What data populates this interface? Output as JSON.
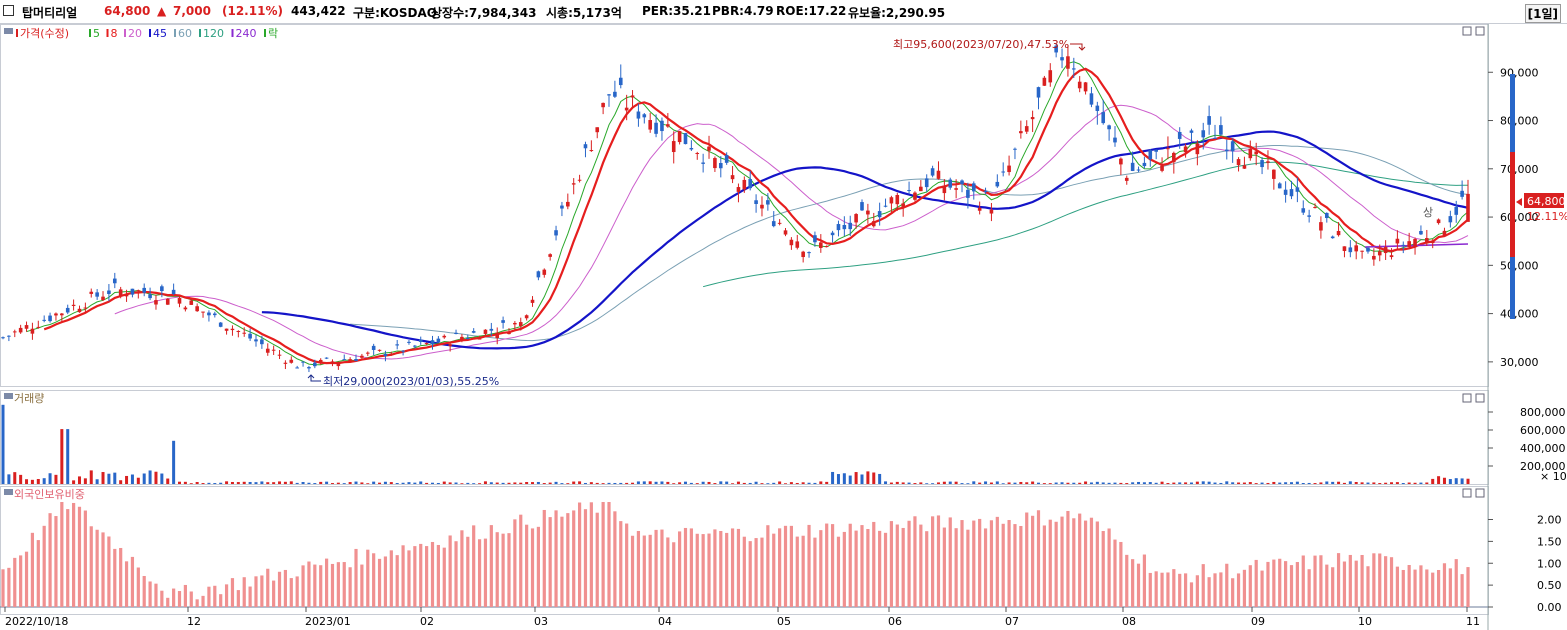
{
  "header": {
    "name": "탑머티리얼",
    "price": "64,800",
    "change_arrow": "▲",
    "change": "7,000",
    "change_pct": "(12.11%)",
    "volume": "443,422",
    "market": "구분:KOSDAQ",
    "shares": "상장수:7,984,343",
    "mktcap": "시총:5,173억",
    "per": "PER:35.21",
    "pbr": "PBR:4.79",
    "roe": "ROE:17.22",
    "float": "유보율:2,290.95",
    "period": "[1일]"
  },
  "colors": {
    "up": "#d92020",
    "down": "#2866c8",
    "ma5": "#2aa82a",
    "ma8": "#e61e1e",
    "ma20": "#cc5fcc",
    "ma45": "#1414c8",
    "ma60": "#7aa0b4",
    "ma120": "#2ea082",
    "ma240": "#8a2ad0",
    "foreign": "#f09090"
  },
  "price_panel": {
    "legend": [
      "가격(수정)",
      "5",
      "8",
      "20",
      "45",
      "60",
      "120",
      "240",
      "락"
    ],
    "axis_ticks": [
      "90,000",
      "80,000",
      "70,000",
      "60,000",
      "50,000",
      "40,000",
      "30,000"
    ],
    "high_label": "최고95,600(2023/07/20),47.53%",
    "low_label": "최저29,000(2023/01/03),55.25%",
    "current_price_label": "64,800",
    "current_pct_label": "12.11%",
    "marker_label": "상"
  },
  "volume_panel": {
    "title": "거래량",
    "axis_ticks": [
      "800,000",
      "600,000",
      "400,000",
      "200,000"
    ],
    "unit": "× 10"
  },
  "foreign_panel": {
    "title": "외국인보유비중",
    "axis_ticks": [
      "2.00",
      "1.50",
      "1.00",
      "0.50",
      "0.00"
    ]
  },
  "x_axis": [
    "2022/10/18",
    "12",
    "2023/01",
    "02",
    "03",
    "04",
    "05",
    "06",
    "07",
    "08",
    "09",
    "10",
    "11"
  ],
  "chart_data": {
    "type": "candlestick",
    "title": "",
    "x_start": "2022-10-18",
    "x_end": "2023-11-01",
    "price_key_points": [
      {
        "date": "2022-10-18",
        "close": 35000
      },
      {
        "date": "2022-11-15",
        "close": 45000
      },
      {
        "date": "2022-12-01",
        "close": 44000
      },
      {
        "date": "2023-01-03",
        "close": 29000
      },
      {
        "date": "2023-02-01",
        "close": 33000
      },
      {
        "date": "2023-03-01",
        "close": 38000
      },
      {
        "date": "2023-03-24",
        "close": 86000
      },
      {
        "date": "2023-04-15",
        "close": 75000
      },
      {
        "date": "2023-05-15",
        "close": 53000
      },
      {
        "date": "2023-06-15",
        "close": 68000
      },
      {
        "date": "2023-07-01",
        "close": 63000
      },
      {
        "date": "2023-07-20",
        "close": 95600
      },
      {
        "date": "2023-08-05",
        "close": 69000
      },
      {
        "date": "2023-08-28",
        "close": 78000
      },
      {
        "date": "2023-09-15",
        "close": 66000
      },
      {
        "date": "2023-10-05",
        "close": 51000
      },
      {
        "date": "2023-10-25",
        "close": 57800
      },
      {
        "date": "2023-11-01",
        "close": 64800
      }
    ],
    "price_high": {
      "date": "2023-07-20",
      "value": 95600
    },
    "price_low": {
      "date": "2023-01-03",
      "value": 29000
    },
    "volume_spikes": [
      {
        "date": "2022-10-18",
        "value": 880000
      },
      {
        "date": "2022-11-03",
        "value": 610000
      },
      {
        "date": "2022-12-01",
        "value": 480000
      }
    ],
    "foreign_ratio_key_points": [
      {
        "date": "2022-10-18",
        "value": 0.85
      },
      {
        "date": "2022-11-04",
        "value": 2.4
      },
      {
        "date": "2022-12-01",
        "value": 0.25
      },
      {
        "date": "2023-03-24",
        "value": 2.35
      },
      {
        "date": "2023-04-01",
        "value": 1.6
      },
      {
        "date": "2023-05-25",
        "value": 1.8
      },
      {
        "date": "2023-07-24",
        "value": 2.1
      },
      {
        "date": "2023-08-15",
        "value": 0.7
      },
      {
        "date": "2023-10-01",
        "value": 1.1
      },
      {
        "date": "2023-11-01",
        "value": 0.9
      }
    ],
    "price_ylim": [
      25000,
      100000
    ],
    "volume_ylim": [
      0,
      1000000
    ],
    "foreign_ylim": [
      0,
      2.4
    ]
  }
}
